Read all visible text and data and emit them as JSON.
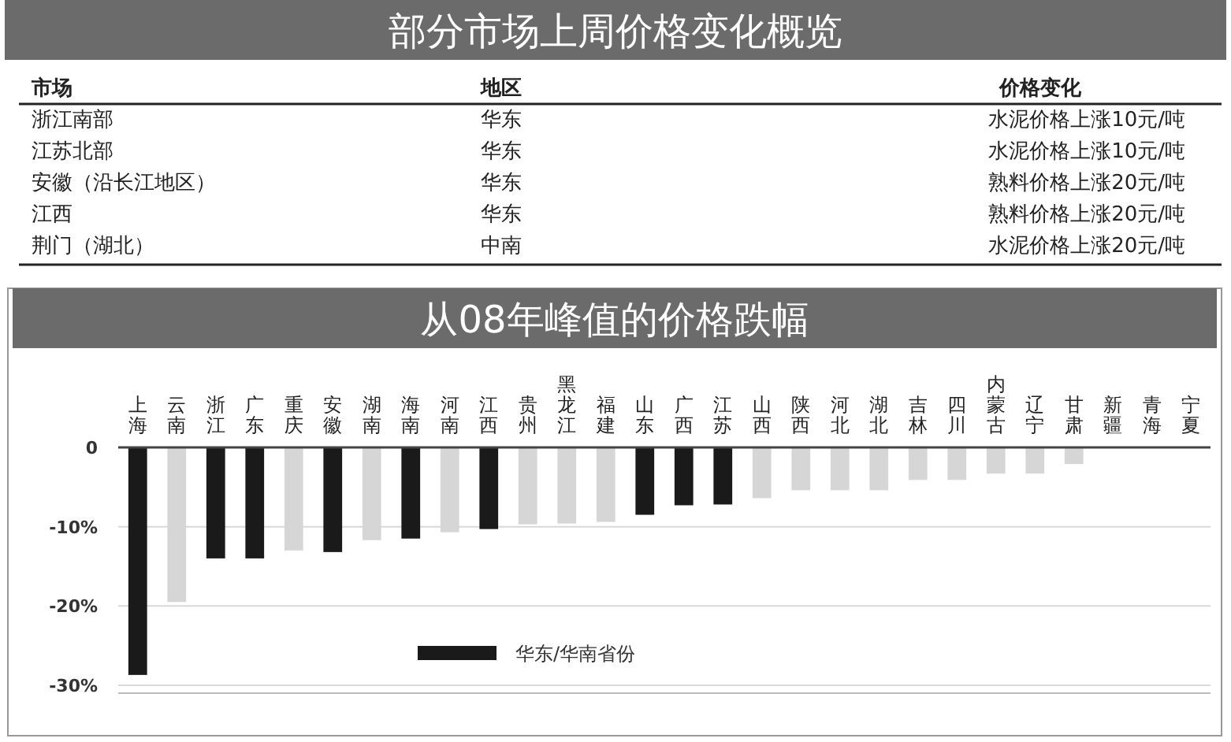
{
  "chart_data": [
    {
      "type": "other",
      "title": "部分市场上周价格变化概览",
      "annotations": [
        "市场",
        "地区",
        "价格变化",
        "浙江南部",
        "华东",
        "水泥价格上涨10元/吨",
        "江苏北部",
        "华东",
        "水泥价格上涨10元/吨",
        "安徽（沿长江地区）",
        "华东",
        "熟料价格上涨20元/吨",
        "江西",
        "华东",
        "熟料价格上涨20元/吨",
        "荆门（湖北）",
        "中南",
        "水泥价格上涨20元/吨"
      ]
    },
    {
      "type": "bar",
      "title": "从08年峰值的价格跌幅",
      "categories": [
        "上海",
        "云南",
        "浙江",
        "广东",
        "重庆",
        "安徽",
        "湖南",
        "海南",
        "河南",
        "江西",
        "贵州",
        "黑龙江",
        "福建",
        "山东",
        "广西",
        "江苏",
        "山西",
        "陕西",
        "河北",
        "湖北",
        "吉林",
        "四川",
        "内蒙古",
        "辽宁",
        "甘肃",
        "新疆",
        "青海",
        "宁夏"
      ],
      "series": [
        {
          "name": "华东/华南省份",
          "color": "#1a1a1a",
          "values": [
            -28.7,
            null,
            -14,
            -14,
            null,
            -13.2,
            null,
            -11.5,
            null,
            -10.3,
            null,
            null,
            null,
            -8.5,
            -7.3,
            -7.2,
            null,
            null,
            null,
            null,
            null,
            null,
            null,
            null,
            null,
            null,
            null,
            null
          ]
        },
        {
          "color": "#d6d6d6",
          "values": [
            null,
            -19.5,
            null,
            null,
            -13,
            null,
            -11.7,
            null,
            -10.7,
            null,
            -9.7,
            -9.6,
            -9.4,
            null,
            null,
            null,
            -6.4,
            -5.4,
            -5.4,
            -5.4,
            -4.1,
            -4.1,
            -3.3,
            -3.3,
            -2.1,
            0,
            0,
            0
          ]
        }
      ],
      "ylim": [
        -31,
        0
      ],
      "yticks": [
        0,
        {
          "value": -10,
          "label": "-10%"
        },
        {
          "value": -20,
          "label": "-20%"
        },
        {
          "value": -30,
          "label": "-30%"
        }
      ],
      "grid": "y",
      "legend": "bottom"
    }
  ]
}
